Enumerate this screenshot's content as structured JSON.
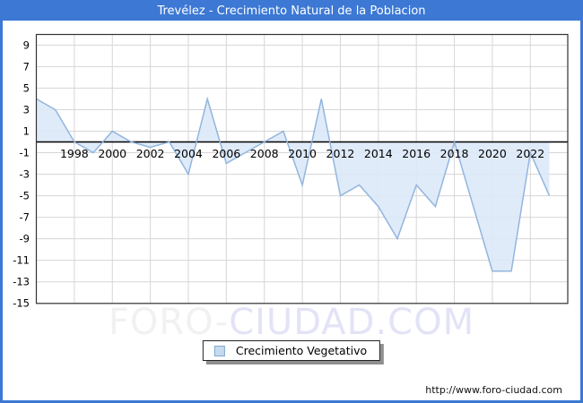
{
  "frame": {
    "title": "Trevélez - Crecimiento Natural de la Poblacion",
    "url": "http://www.foro-ciudad.com",
    "accent_color": "#3c78d4"
  },
  "watermark": {
    "part1": "FORO-",
    "part2": "CIUDAD.COM"
  },
  "legend": {
    "label": "Crecimiento Vegetativo"
  },
  "chart_data": {
    "type": "area",
    "title": "Trevélez - Crecimiento Natural de la Poblacion",
    "x": [
      1996,
      1997,
      1998,
      1999,
      2000,
      2001,
      2002,
      2003,
      2004,
      2005,
      2006,
      2007,
      2008,
      2009,
      2010,
      2011,
      2012,
      2013,
      2014,
      2015,
      2016,
      2017,
      2018,
      2019,
      2020,
      2021,
      2022,
      2023
    ],
    "series": [
      {
        "name": "Crecimiento Vegetativo",
        "values": [
          4,
          3,
          0,
          -1,
          1,
          0,
          -0.5,
          0,
          -3,
          4,
          -2,
          -1,
          0,
          1,
          -4,
          4,
          -5,
          -4,
          -6,
          -9,
          -4,
          -6,
          0,
          -6,
          -12,
          -12,
          -1,
          -5
        ]
      }
    ],
    "baseline": 0,
    "ylim": [
      -15,
      10
    ],
    "yticks": [
      9,
      7,
      5,
      3,
      1,
      -1,
      -3,
      -5,
      -7,
      -9,
      -11,
      -13,
      -15
    ],
    "xticks": [
      1998,
      2000,
      2002,
      2004,
      2006,
      2008,
      2010,
      2012,
      2014,
      2016,
      2018,
      2020,
      2022
    ],
    "grid": true,
    "legend_position": "bottom-center",
    "line_color": "#93b5de",
    "fill_color": "#dce9f8",
    "grid_color": "#d6d6d6",
    "axis_color": "#333333",
    "zero_line_color": "#000000"
  }
}
